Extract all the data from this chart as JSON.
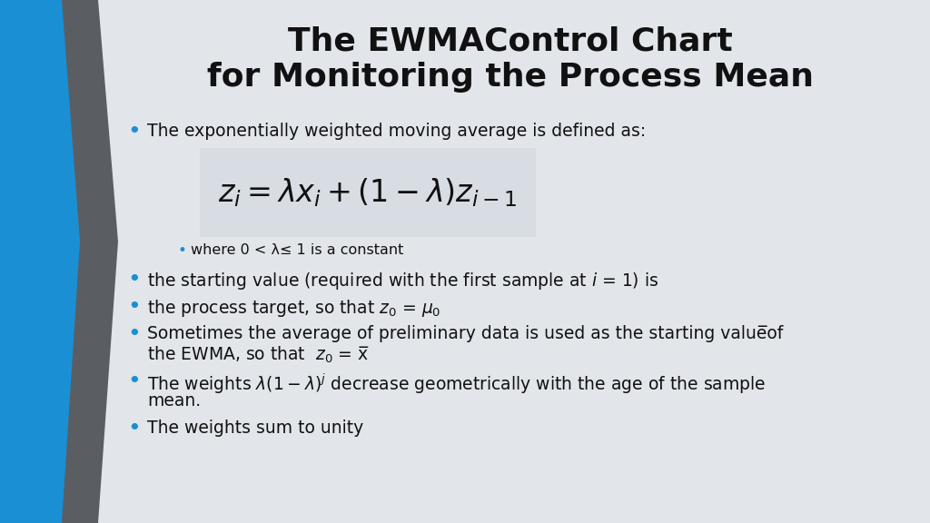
{
  "title_line1": "The EWMAControl Chart",
  "title_line2": "for Monitoring the Process Mean",
  "background_color": "#e2e5ea",
  "title_fontsize": 26,
  "bullet_color": "#1b8fd4",
  "text_color": "#111111",
  "formula_box_color": "#dde1e7",
  "bullets_main": [
    "The exponentially weighted moving average is defined as:",
    "the starting value (required with the first sample at $i$ = 1) is",
    "the process target, so that $z_0$ = $\\mu_0$",
    "Sometimes the average of preliminary data is used as the starting value̅of\nthe EWMA, so that  $z_0$ = x̅",
    "The weights λ(1 – λ)$^j$ decrease geometrically with the age of the sample\nmean.",
    "The weights sum to unity"
  ],
  "sub_bullet": "where 0 < λ≤ 1 is a constant",
  "dark_bar_color": "#5a5e63",
  "blue_bar_color": "#1b8fd4",
  "formula": "$z_i = \\lambda x_i + (1-\\lambda)z_{i-1}$",
  "formula_fontsize": 24
}
